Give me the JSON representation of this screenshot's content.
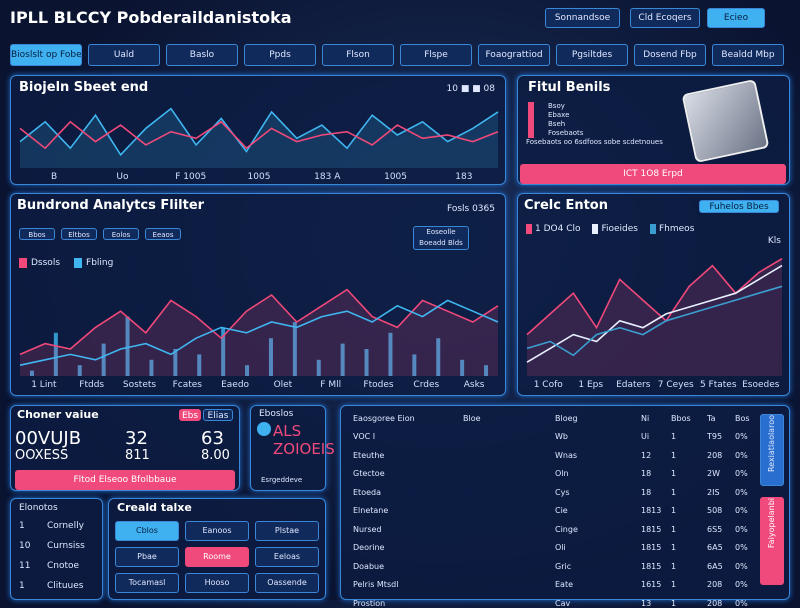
{
  "header": {
    "logo": "IPLL BLCCY Pobderaildanistoka",
    "buttons": [
      "Sonnandsoe",
      "Cld Ecoqers",
      "Ecieo"
    ]
  },
  "nav": [
    "Bioslslt op Fobes",
    "Uald",
    "Baslo",
    "Ppds",
    "Flson",
    "Flspe",
    "Foaograttiod",
    "Pgsiltdes",
    "Dosend Fbp",
    "Bealdd Mbp"
  ],
  "top_chart": {
    "type": "line",
    "title": "Biojeln Sbeet end",
    "badge": "10 ■ ■ 08",
    "x_labels": [
      "B",
      "Uo",
      "F 1005",
      "1005",
      "183 A",
      "1005",
      "183"
    ],
    "ylim": [
      0,
      100
    ],
    "series": [
      {
        "color": "#3fb6f0",
        "values": [
          40,
          70,
          30,
          80,
          20,
          60,
          90,
          35,
          75,
          25,
          85,
          45,
          65,
          30,
          80,
          50,
          70,
          40,
          60,
          85
        ]
      },
      {
        "color": "#f0497a",
        "values": [
          60,
          30,
          70,
          40,
          65,
          35,
          55,
          45,
          70,
          30,
          60,
          40,
          50,
          55,
          35,
          65,
          45,
          50,
          40,
          55
        ]
      }
    ]
  },
  "result_panel": {
    "title": "Fitul Benils",
    "items": [
      "Bsoy",
      "Ebaxe",
      "Bseh",
      "Fosebaots"
    ],
    "note": "Fosebaots oo 6sdfoos sobe scdetnoues",
    "button": "ICT 1O8 Erpd"
  },
  "analytics_chart": {
    "type": "line",
    "title": "Bundrond Analytcs Flilter",
    "badge": "Fosls 0365",
    "chips": [
      "Bbos",
      "Eltbos",
      "Eolos",
      "Eeaos"
    ],
    "box": [
      "Eoseolle",
      "Boeadd Blds"
    ],
    "legend": [
      "Dssols",
      "Fbling"
    ],
    "x_labels": [
      "1 Lint",
      "Ftdds",
      "Sostets",
      "Fcates",
      "Eaedo",
      "Olet",
      "F Mll",
      "Ftodes",
      "Crdes",
      "Asks"
    ],
    "ylim": [
      0,
      100
    ],
    "series": [
      {
        "name": "Dssols",
        "color": "#f0497a",
        "values": [
          20,
          30,
          25,
          45,
          60,
          40,
          70,
          55,
          35,
          60,
          75,
          50,
          65,
          80,
          55,
          45,
          70,
          60,
          50,
          65
        ]
      },
      {
        "name": "Fbling",
        "color": "#3fb6f0",
        "values": [
          10,
          15,
          20,
          15,
          25,
          30,
          20,
          35,
          45,
          40,
          50,
          45,
          55,
          60,
          50,
          65,
          55,
          70,
          60,
          50
        ]
      }
    ],
    "bars": {
      "color": "#3fb6f0",
      "values": [
        5,
        40,
        10,
        30,
        55,
        15,
        25,
        20,
        45,
        10,
        35,
        50,
        15,
        30,
        25,
        40,
        20,
        35,
        15,
        10
      ]
    }
  },
  "credit_chart": {
    "type": "line",
    "title": "Crelc Enton",
    "button": "Fuhelos Bbes",
    "legend": [
      "1 DO4 Clo",
      "Fioeides",
      "Fhmeos"
    ],
    "corner_label": "Kls",
    "x_labels": [
      "1 Cofo",
      "1 Eps",
      "Edaters",
      "7 Ceyes",
      "5 Ftates",
      "Esoedes"
    ],
    "ylim": [
      0,
      100
    ],
    "series": [
      {
        "color": "#f0497a",
        "values": [
          30,
          45,
          60,
          35,
          70,
          55,
          40,
          65,
          80,
          60,
          75,
          85
        ]
      },
      {
        "color": "#e8f0ff",
        "values": [
          10,
          20,
          30,
          25,
          40,
          35,
          45,
          50,
          55,
          60,
          70,
          80
        ]
      },
      {
        "color": "#3a9fd0",
        "values": [
          20,
          25,
          15,
          30,
          35,
          30,
          40,
          45,
          50,
          55,
          60,
          65
        ]
      }
    ]
  },
  "value_panel": {
    "title": "Choner vaiue",
    "tags": [
      "Ebs",
      "Elias"
    ],
    "left": [
      "00VUJB",
      "OOXESS"
    ],
    "mid": [
      "32",
      "811"
    ],
    "right": [
      "63",
      "8.00"
    ],
    "button": "Fltod Elseoo Bfolbbaue"
  },
  "alert_panel": {
    "top": "Eboslos",
    "lines": [
      "ALS",
      "ZOIOEIS"
    ],
    "foot": "Esrgeddeve"
  },
  "side_list": {
    "title": "Elonotos",
    "items": [
      {
        "n": "1",
        "label": "Cornelly"
      },
      {
        "n": "10",
        "label": "Curnsiss"
      },
      {
        "n": "11",
        "label": "Cnotoe"
      },
      {
        "n": "1",
        "label": "Clituues"
      }
    ]
  },
  "grid_panel": {
    "title": "Creald talxe",
    "cells": [
      [
        "Cblos",
        "Eanoos",
        "Plstae"
      ],
      [
        "Pbae",
        "Roome",
        "Eeloas"
      ],
      [
        "Tocamasl",
        "Hooso",
        "Oassende"
      ]
    ]
  },
  "table": {
    "header": [
      "Eaosgoree Eion",
      "Bloe",
      "Bloeg",
      "Ni",
      "Bbos",
      "Ta",
      "Bos"
    ],
    "rows": [
      [
        "VOC I",
        "Wb",
        "Ui",
        "1",
        "T95",
        "0%"
      ],
      [
        "Eteuthe",
        "Wnas",
        "12",
        "1",
        "208",
        "0%"
      ],
      [
        "Gtectoe",
        "Oln",
        "18",
        "1",
        "2W",
        "0%"
      ],
      [
        "Etoeda",
        "Cys",
        "18",
        "1",
        "2IS",
        "0%"
      ],
      [
        "Elnetane",
        "Cie",
        "1813",
        "1",
        "508",
        "0%"
      ],
      [
        "Nursed",
        "Cinge",
        "1815",
        "1",
        "6S5",
        "0%"
      ],
      [
        "Deorine",
        "Oli",
        "1815",
        "1",
        "6A5",
        "0%"
      ],
      [
        "Doabue",
        "Gric",
        "1815",
        "1",
        "6A5",
        "0%"
      ],
      [
        "Pelris Mtsdl",
        "Eate",
        "1615",
        "1",
        "208",
        "0%"
      ],
      [
        "Prostion",
        "Cav",
        "13",
        "1",
        "208",
        "0%"
      ]
    ]
  },
  "side_buttons": [
    "Rexiatlaolaroo",
    "Faiyopelanbi"
  ]
}
